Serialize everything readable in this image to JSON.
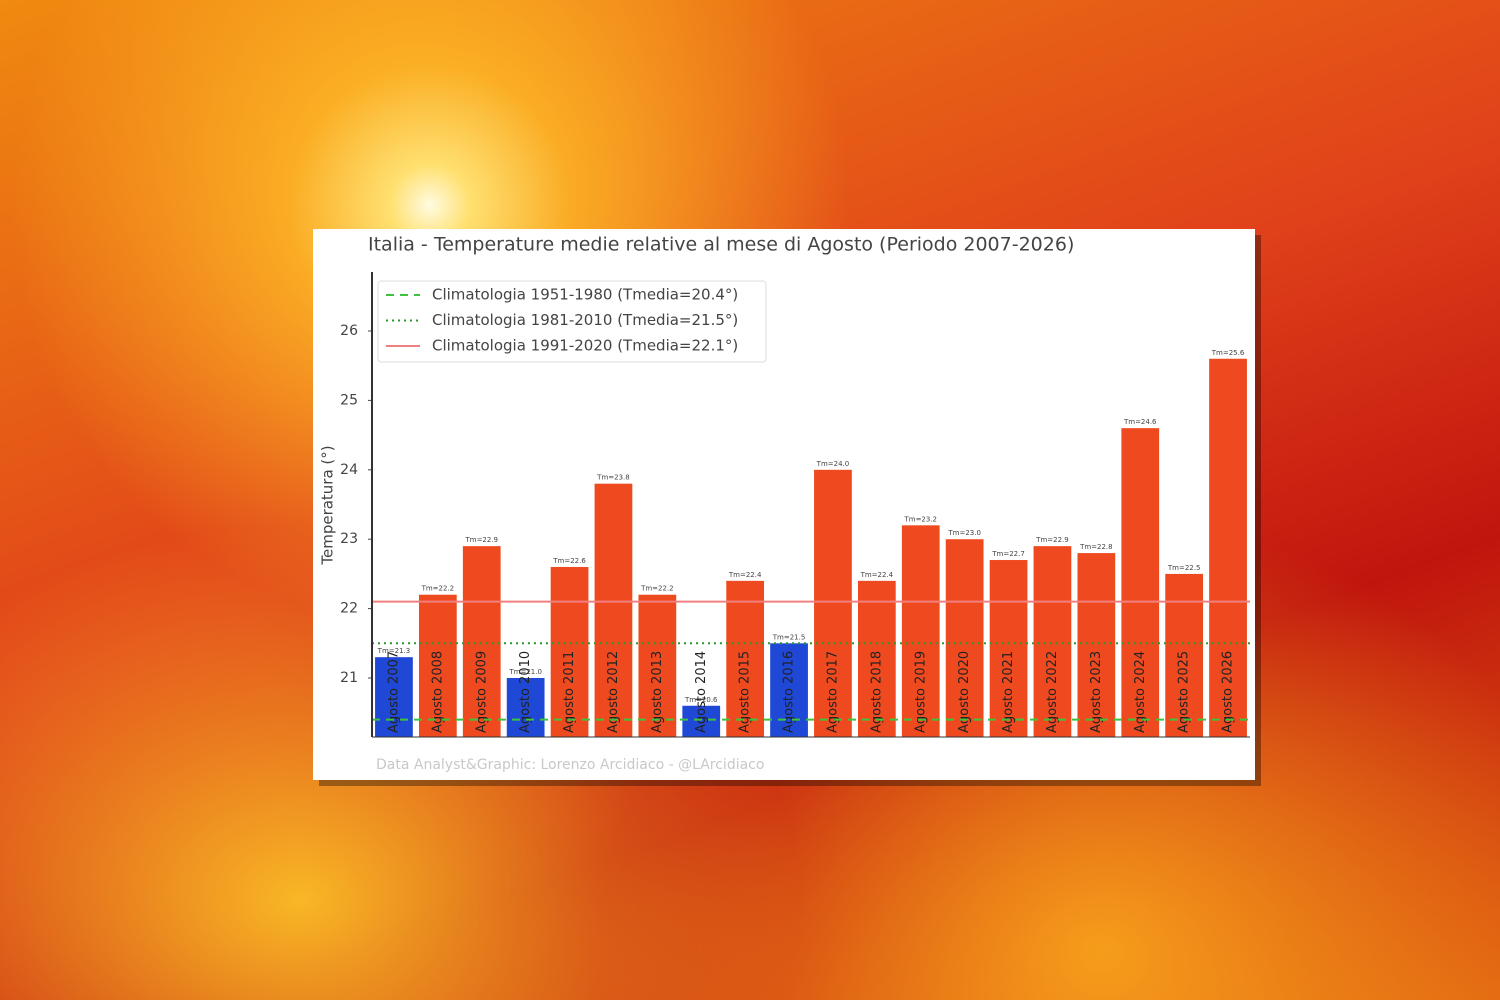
{
  "chart_data": {
    "type": "bar",
    "title": "Italia - Temperature medie relative al mese di Agosto (Periodo 2007-2026)",
    "ylabel": "Temperatura (°)",
    "footer": "Data Analyst&Graphic: Lorenzo Arcidiaco - @LArcidiaco",
    "categories": [
      "Agosto 2007",
      "Agosto 2008",
      "Agosto 2009",
      "Agosto 2010",
      "Agosto 2011",
      "Agosto 2012",
      "Agosto 2013",
      "Agosto 2014",
      "Agosto 2015",
      "Agosto 2016",
      "Agosto 2017",
      "Agosto 2018",
      "Agosto 2019",
      "Agosto 2020",
      "Agosto 2021",
      "Agosto 2022",
      "Agosto 2023",
      "Agosto 2024",
      "Agosto 2025",
      "Agosto 2026"
    ],
    "values": [
      21.3,
      22.2,
      22.9,
      21.0,
      22.6,
      23.8,
      22.2,
      20.6,
      22.4,
      21.5,
      24.0,
      22.4,
      23.2,
      23.0,
      22.7,
      22.9,
      22.8,
      24.6,
      22.5,
      25.6
    ],
    "value_labels": [
      "Tm=21.3",
      "Tm=22.2",
      "Tm=22.9",
      "Tm=21.0",
      "Tm=22.6",
      "Tm=23.8",
      "Tm=22.2",
      "Tm=20.6",
      "Tm=22.4",
      "Tm=21.5",
      "Tm=24.0",
      "Tm=22.4",
      "Tm=23.2",
      "Tm=23.0",
      "Tm=22.7",
      "Tm=22.9",
      "Tm=22.8",
      "Tm=24.6",
      "Tm=22.5",
      "Tm=25.6"
    ],
    "colors": [
      "#1f48d6",
      "#ef4a1f",
      "#ef4a1f",
      "#1f48d6",
      "#ef4a1f",
      "#ef4a1f",
      "#ef4a1f",
      "#1f48d6",
      "#ef4a1f",
      "#1f48d6",
      "#ef4a1f",
      "#ef4a1f",
      "#ef4a1f",
      "#ef4a1f",
      "#ef4a1f",
      "#ef4a1f",
      "#ef4a1f",
      "#ef4a1f",
      "#ef4a1f",
      "#ef4a1f"
    ],
    "reference_lines": [
      {
        "name": "Climatologia 1951-1980 (Tmedia=20.4°)",
        "value": 20.4,
        "color": "#3cc43c",
        "style": "dashed"
      },
      {
        "name": "Climatologia 1981-2010 (Tmedia=21.5°)",
        "value": 21.5,
        "color": "#2a9a2a",
        "style": "dotted"
      },
      {
        "name": "Climatologia 1991-2020 (Tmedia=22.1°)",
        "value": 22.1,
        "color": "#f08080",
        "style": "solid"
      }
    ],
    "legend": "upper left",
    "ylim": [
      20.15,
      26.85
    ],
    "yticks": [
      21,
      22,
      23,
      24,
      25,
      26
    ]
  }
}
